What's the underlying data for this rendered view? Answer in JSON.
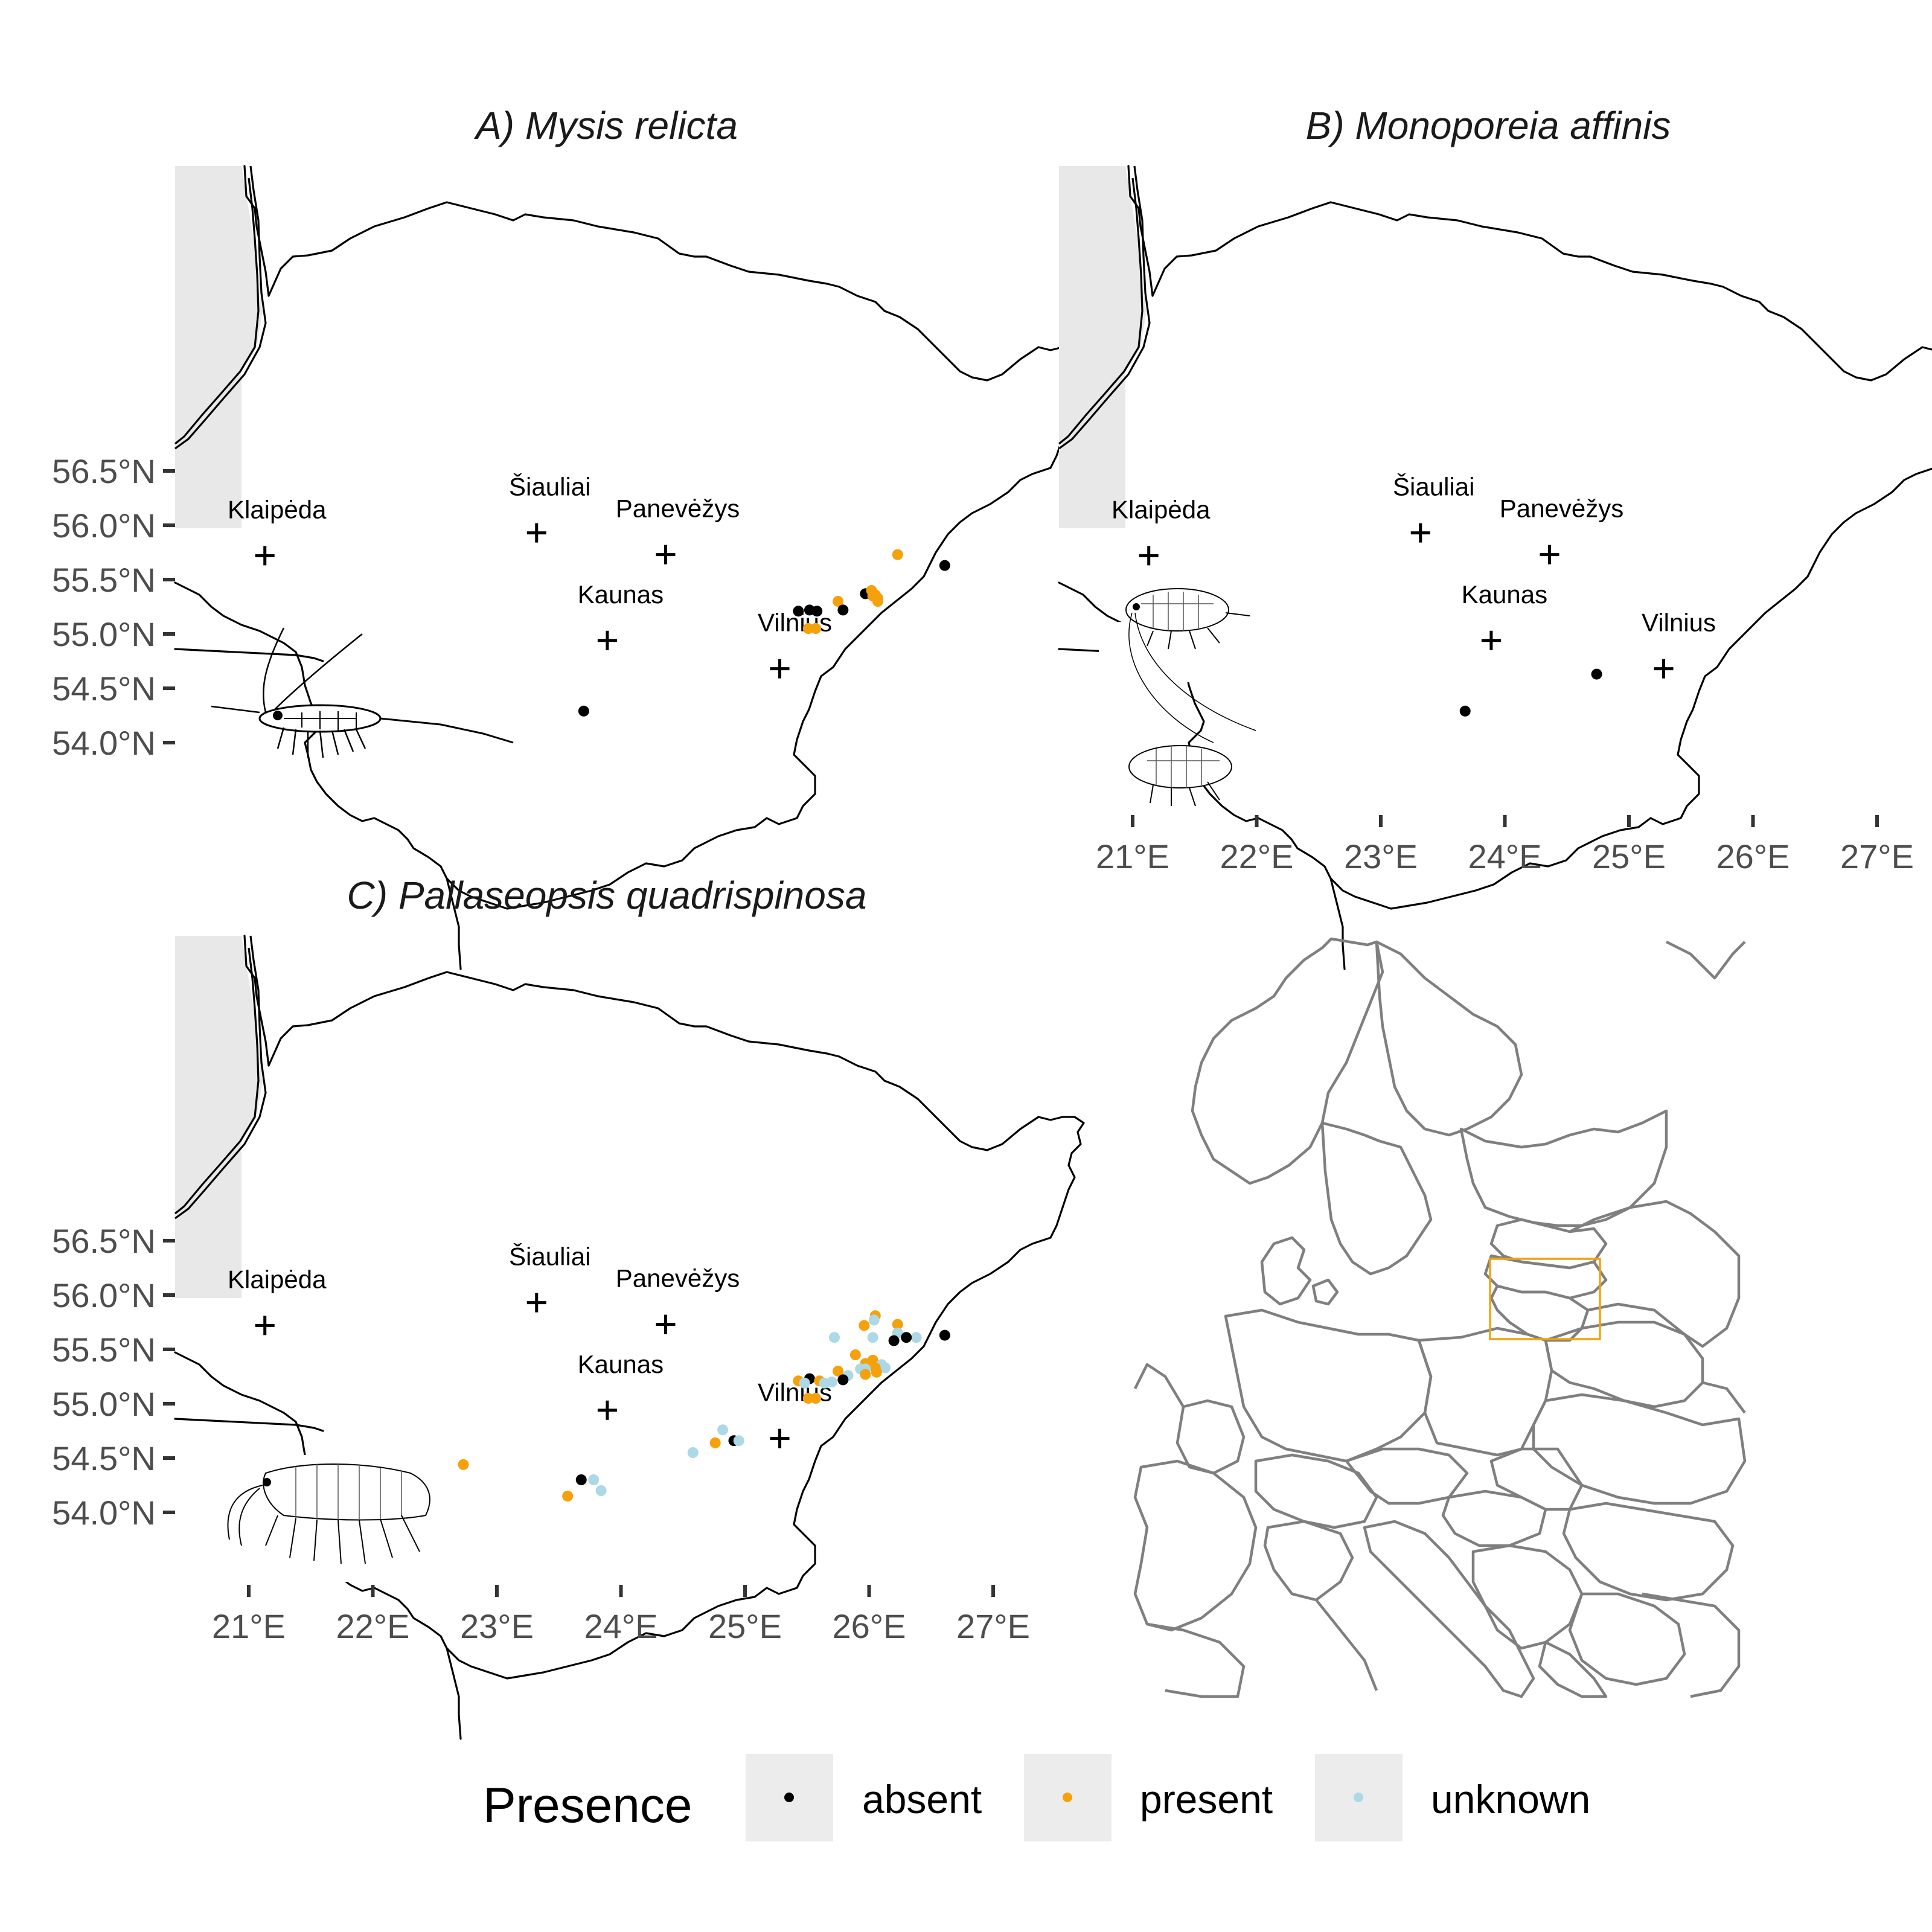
{
  "panels": [
    {
      "key": "A",
      "title": "A) Mysis relicta"
    },
    {
      "key": "B",
      "title": "B) Monoporeia affinis"
    },
    {
      "key": "C",
      "title": "C) Pallaseopsis quadrispinosa"
    }
  ],
  "axes": {
    "lat_ticks": [
      "56.5°N",
      "56.0°N",
      "55.5°N",
      "55.0°N",
      "54.5°N",
      "54.0°N"
    ],
    "lon_ticks": [
      "21°E",
      "22°E",
      "23°E",
      "24°E",
      "25°E",
      "26°E",
      "27°E"
    ]
  },
  "cities": [
    {
      "name": "Klaipėda"
    },
    {
      "name": "Šiauliai"
    },
    {
      "name": "Panevėžys"
    },
    {
      "name": "Kaunas"
    },
    {
      "name": "Vilnius"
    }
  ],
  "legend": {
    "title": "Presence",
    "items": [
      {
        "label": "absent",
        "color": "#000000"
      },
      {
        "label": "present",
        "color": "#F5A10C"
      },
      {
        "label": "unknown",
        "color": "#ADD8E6"
      }
    ]
  },
  "inset": {
    "highlight_color": "#F5A10C"
  },
  "chart_data": {
    "type": "scatter",
    "x_unit": "longitude (°E)",
    "y_unit": "latitude (°N)",
    "xlim": [
      20.6,
      27.3
    ],
    "ylim": [
      53.7,
      56.65
    ],
    "cities": [
      {
        "name": "Klaipėda",
        "lon": 21.13,
        "lat": 55.72
      },
      {
        "name": "Šiauliai",
        "lon": 23.32,
        "lat": 55.93
      },
      {
        "name": "Panevėžys",
        "lon": 24.36,
        "lat": 55.73
      },
      {
        "name": "Kaunas",
        "lon": 23.89,
        "lat": 54.94
      },
      {
        "name": "Vilnius",
        "lon": 25.28,
        "lat": 54.68
      }
    ],
    "series": [
      {
        "panel": "A",
        "points": [
          {
            "lon": 26.23,
            "lat": 55.73,
            "presence": "present"
          },
          {
            "lon": 26.61,
            "lat": 55.63,
            "presence": "absent"
          },
          {
            "lon": 25.97,
            "lat": 55.37,
            "presence": "absent"
          },
          {
            "lon": 26.02,
            "lat": 55.4,
            "presence": "present"
          },
          {
            "lon": 26.05,
            "lat": 55.36,
            "presence": "present"
          },
          {
            "lon": 26.07,
            "lat": 55.33,
            "presence": "present"
          },
          {
            "lon": 26.07,
            "lat": 55.3,
            "presence": "present"
          },
          {
            "lon": 26.03,
            "lat": 55.35,
            "presence": "present"
          },
          {
            "lon": 25.75,
            "lat": 55.3,
            "presence": "present"
          },
          {
            "lon": 25.43,
            "lat": 55.21,
            "presence": "absent"
          },
          {
            "lon": 25.52,
            "lat": 55.22,
            "presence": "absent"
          },
          {
            "lon": 25.58,
            "lat": 55.21,
            "presence": "absent"
          },
          {
            "lon": 25.79,
            "lat": 55.22,
            "presence": "absent"
          },
          {
            "lon": 25.51,
            "lat": 55.05,
            "presence": "present"
          },
          {
            "lon": 25.57,
            "lat": 55.05,
            "presence": "present"
          },
          {
            "lon": 23.7,
            "lat": 54.29,
            "presence": "absent"
          }
        ]
      },
      {
        "panel": "B",
        "points": [
          {
            "lon": 24.74,
            "lat": 54.63,
            "presence": "absent"
          },
          {
            "lon": 23.68,
            "lat": 54.29,
            "presence": "absent"
          }
        ]
      },
      {
        "panel": "C",
        "points": [
          {
            "lon": 26.05,
            "lat": 55.81,
            "presence": "present"
          },
          {
            "lon": 26.04,
            "lat": 55.77,
            "presence": "unknown"
          },
          {
            "lon": 25.96,
            "lat": 55.72,
            "presence": "present"
          },
          {
            "lon": 26.23,
            "lat": 55.73,
            "presence": "present"
          },
          {
            "lon": 26.23,
            "lat": 55.65,
            "presence": "unknown"
          },
          {
            "lon": 26.38,
            "lat": 55.61,
            "presence": "unknown"
          },
          {
            "lon": 26.3,
            "lat": 55.61,
            "presence": "absent"
          },
          {
            "lon": 26.61,
            "lat": 55.63,
            "presence": "absent"
          },
          {
            "lon": 26.2,
            "lat": 55.58,
            "presence": "absent"
          },
          {
            "lon": 25.72,
            "lat": 55.61,
            "presence": "unknown"
          },
          {
            "lon": 26.03,
            "lat": 55.61,
            "presence": "unknown"
          },
          {
            "lon": 25.89,
            "lat": 55.45,
            "presence": "present"
          },
          {
            "lon": 25.97,
            "lat": 55.37,
            "presence": "present"
          },
          {
            "lon": 26.03,
            "lat": 55.4,
            "presence": "present"
          },
          {
            "lon": 26.1,
            "lat": 55.36,
            "presence": "unknown"
          },
          {
            "lon": 26.13,
            "lat": 55.33,
            "presence": "unknown"
          },
          {
            "lon": 26.05,
            "lat": 55.33,
            "presence": "present"
          },
          {
            "lon": 26.06,
            "lat": 55.29,
            "presence": "present"
          },
          {
            "lon": 25.97,
            "lat": 55.32,
            "presence": "unknown"
          },
          {
            "lon": 25.93,
            "lat": 55.32,
            "presence": "unknown"
          },
          {
            "lon": 25.75,
            "lat": 55.3,
            "presence": "present"
          },
          {
            "lon": 25.97,
            "lat": 55.27,
            "presence": "present"
          },
          {
            "lon": 25.83,
            "lat": 55.26,
            "presence": "unknown"
          },
          {
            "lon": 25.52,
            "lat": 55.23,
            "presence": "absent"
          },
          {
            "lon": 25.79,
            "lat": 55.22,
            "presence": "absent"
          },
          {
            "lon": 25.43,
            "lat": 55.21,
            "presence": "present"
          },
          {
            "lon": 25.48,
            "lat": 55.19,
            "presence": "unknown"
          },
          {
            "lon": 25.6,
            "lat": 55.21,
            "presence": "present"
          },
          {
            "lon": 25.64,
            "lat": 55.19,
            "presence": "unknown"
          },
          {
            "lon": 25.7,
            "lat": 55.2,
            "presence": "unknown"
          },
          {
            "lon": 25.51,
            "lat": 55.05,
            "presence": "present"
          },
          {
            "lon": 25.57,
            "lat": 55.05,
            "presence": "present"
          },
          {
            "lon": 24.82,
            "lat": 54.76,
            "presence": "unknown"
          },
          {
            "lon": 24.76,
            "lat": 54.64,
            "presence": "present"
          },
          {
            "lon": 24.91,
            "lat": 54.66,
            "presence": "absent"
          },
          {
            "lon": 24.95,
            "lat": 54.66,
            "presence": "unknown"
          },
          {
            "lon": 24.58,
            "lat": 54.55,
            "presence": "unknown"
          },
          {
            "lon": 22.73,
            "lat": 54.44,
            "presence": "present"
          },
          {
            "lon": 23.68,
            "lat": 54.3,
            "presence": "absent"
          },
          {
            "lon": 23.78,
            "lat": 54.3,
            "presence": "unknown"
          },
          {
            "lon": 23.84,
            "lat": 54.2,
            "presence": "unknown"
          },
          {
            "lon": 23.57,
            "lat": 54.15,
            "presence": "present"
          }
        ]
      }
    ]
  }
}
